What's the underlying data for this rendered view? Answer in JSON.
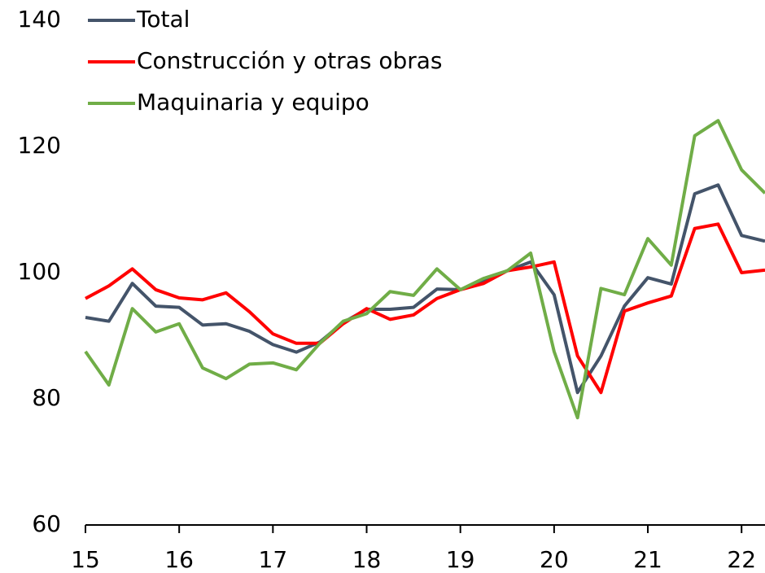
{
  "chart_data": {
    "type": "line",
    "x": [
      15,
      15.25,
      15.5,
      15.75,
      16,
      16.25,
      16.5,
      16.75,
      17,
      17.25,
      17.5,
      17.75,
      18,
      18.25,
      18.5,
      18.75,
      19,
      19.25,
      19.5,
      19.75,
      20,
      20.25,
      20.5,
      20.75,
      21,
      21.25,
      21.5,
      21.75,
      22,
      22.25
    ],
    "series": [
      {
        "name": "Total",
        "color": "#44546a",
        "values": [
          92.9,
          92.3,
          98.3,
          94.7,
          94.5,
          91.7,
          91.9,
          90.7,
          88.6,
          87.4,
          89.0,
          92.1,
          94.2,
          94.2,
          94.5,
          97.4,
          97.3,
          98.7,
          100.3,
          101.7,
          96.5,
          81.0,
          86.8,
          94.7,
          99.2,
          98.2,
          112.5,
          113.9,
          105.9,
          105.0
        ]
      },
      {
        "name": "Construcción y otras obras",
        "color": "#ff0000",
        "values": [
          95.9,
          97.9,
          100.6,
          97.3,
          96.0,
          95.7,
          96.8,
          93.8,
          90.3,
          88.8,
          88.8,
          91.9,
          94.3,
          92.6,
          93.3,
          95.9,
          97.3,
          98.3,
          100.3,
          100.9,
          101.7,
          86.8,
          81.0,
          93.9,
          95.2,
          96.3,
          107.0,
          107.7,
          100.0,
          100.4
        ]
      },
      {
        "name": "Maquinaria y equipo",
        "color": "#70ad47",
        "values": [
          87.5,
          82.2,
          94.3,
          90.6,
          91.9,
          84.9,
          83.2,
          85.5,
          85.7,
          84.6,
          88.8,
          92.3,
          93.5,
          97.0,
          96.4,
          100.6,
          97.3,
          99.1,
          100.3,
          103.1,
          87.5,
          77.0,
          97.5,
          96.5,
          105.4,
          101.2,
          121.7,
          124.1,
          116.3,
          112.6
        ]
      }
    ],
    "xlim": [
      15,
      22.25
    ],
    "xticks": [
      15,
      16,
      17,
      18,
      19,
      20,
      21,
      22
    ],
    "ylim": [
      60,
      140
    ],
    "yticks": [
      60,
      80,
      100,
      120,
      140
    ],
    "legend": "top-left"
  }
}
